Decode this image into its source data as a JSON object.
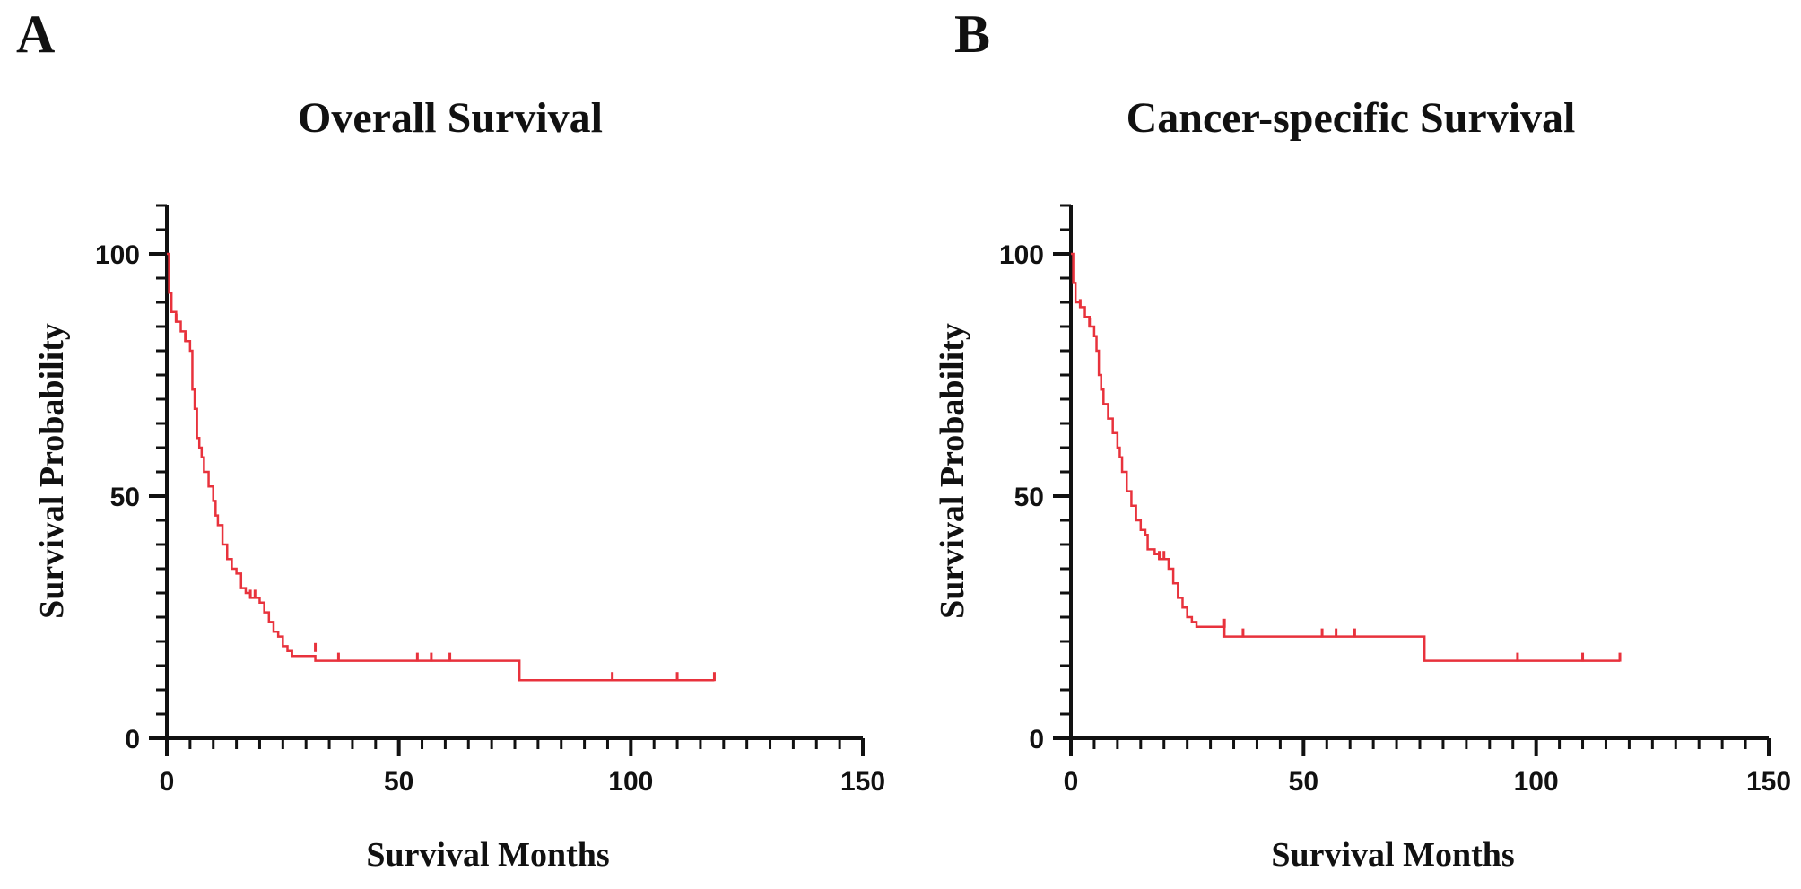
{
  "colors": {
    "curve": "#e8323c",
    "axis": "#111111"
  },
  "chart_data": [
    {
      "panel": "A",
      "type": "line",
      "title": "Overall Survival",
      "xlabel": "Survival Months",
      "ylabel": "Survival Probability",
      "xlim": [
        0,
        150
      ],
      "ylim": [
        0,
        110
      ],
      "xticks": [
        0,
        50,
        100,
        150
      ],
      "yticks": [
        0,
        50,
        100
      ],
      "xtick_labels": [
        "0",
        "50",
        "100",
        "150"
      ],
      "ytick_labels": [
        "0",
        "50",
        "100"
      ],
      "series": [
        {
          "name": "Overall Survival",
          "step": [
            [
              0,
              100
            ],
            [
              0.5,
              92
            ],
            [
              1,
              88
            ],
            [
              2,
              86
            ],
            [
              3,
              84
            ],
            [
              4,
              82
            ],
            [
              5,
              80
            ],
            [
              5.5,
              72
            ],
            [
              6,
              68
            ],
            [
              6.5,
              62
            ],
            [
              7,
              60
            ],
            [
              7.5,
              58
            ],
            [
              8,
              55
            ],
            [
              9,
              52
            ],
            [
              10,
              49
            ],
            [
              10.5,
              46
            ],
            [
              11,
              44
            ],
            [
              12,
              40
            ],
            [
              13,
              37
            ],
            [
              14,
              35
            ],
            [
              15,
              34
            ],
            [
              16,
              31
            ],
            [
              17,
              30
            ],
            [
              18,
              29
            ],
            [
              20,
              28
            ],
            [
              21,
              26
            ],
            [
              22,
              24
            ],
            [
              23,
              22
            ],
            [
              24,
              21
            ],
            [
              25,
              19
            ],
            [
              26,
              18
            ],
            [
              27,
              17
            ],
            [
              32,
              16
            ],
            [
              76,
              16
            ],
            [
              76,
              12
            ],
            [
              118,
              12
            ]
          ],
          "censored": [
            [
              2,
              86
            ],
            [
              4,
              82
            ],
            [
              18,
              29
            ],
            [
              19,
              29
            ],
            [
              32,
              18
            ],
            [
              37,
              16
            ],
            [
              54,
              16
            ],
            [
              57,
              16
            ],
            [
              61,
              16
            ],
            [
              96,
              12
            ],
            [
              110,
              12
            ],
            [
              118,
              12
            ]
          ]
        }
      ]
    },
    {
      "panel": "B",
      "type": "line",
      "title": "Cancer-specific Survival",
      "xlabel": "Survival Months",
      "ylabel": "Survival Probability",
      "xlim": [
        0,
        150
      ],
      "ylim": [
        0,
        110
      ],
      "xticks": [
        0,
        50,
        100,
        150
      ],
      "yticks": [
        0,
        50,
        100
      ],
      "xtick_labels": [
        "0",
        "50",
        "100",
        "150"
      ],
      "ytick_labels": [
        "0",
        "50",
        "100"
      ],
      "series": [
        {
          "name": "Cancer-specific Survival",
          "step": [
            [
              0,
              100
            ],
            [
              0.5,
              94
            ],
            [
              1,
              90
            ],
            [
              2,
              89
            ],
            [
              3,
              87
            ],
            [
              4,
              85
            ],
            [
              5,
              83
            ],
            [
              5.5,
              80
            ],
            [
              6,
              75
            ],
            [
              6.5,
              72
            ],
            [
              7,
              69
            ],
            [
              8,
              66
            ],
            [
              9,
              63
            ],
            [
              10,
              60
            ],
            [
              10.5,
              58
            ],
            [
              11,
              55
            ],
            [
              12,
              51
            ],
            [
              13,
              48
            ],
            [
              14,
              45
            ],
            [
              15,
              43
            ],
            [
              16,
              42
            ],
            [
              16.5,
              39
            ],
            [
              18,
              38
            ],
            [
              19,
              37
            ],
            [
              21,
              35
            ],
            [
              22,
              32
            ],
            [
              23,
              29
            ],
            [
              24,
              27
            ],
            [
              25,
              25
            ],
            [
              26,
              24
            ],
            [
              27,
              23
            ],
            [
              33,
              21
            ],
            [
              76,
              21
            ],
            [
              76,
              16
            ],
            [
              118,
              16
            ]
          ],
          "censored": [
            [
              2,
              89
            ],
            [
              4,
              85
            ],
            [
              19,
              37
            ],
            [
              20,
              37
            ],
            [
              33,
              23
            ],
            [
              37,
              21
            ],
            [
              54,
              21
            ],
            [
              57,
              21
            ],
            [
              61,
              21
            ],
            [
              96,
              16
            ],
            [
              110,
              16
            ],
            [
              118,
              16
            ]
          ]
        }
      ]
    }
  ]
}
